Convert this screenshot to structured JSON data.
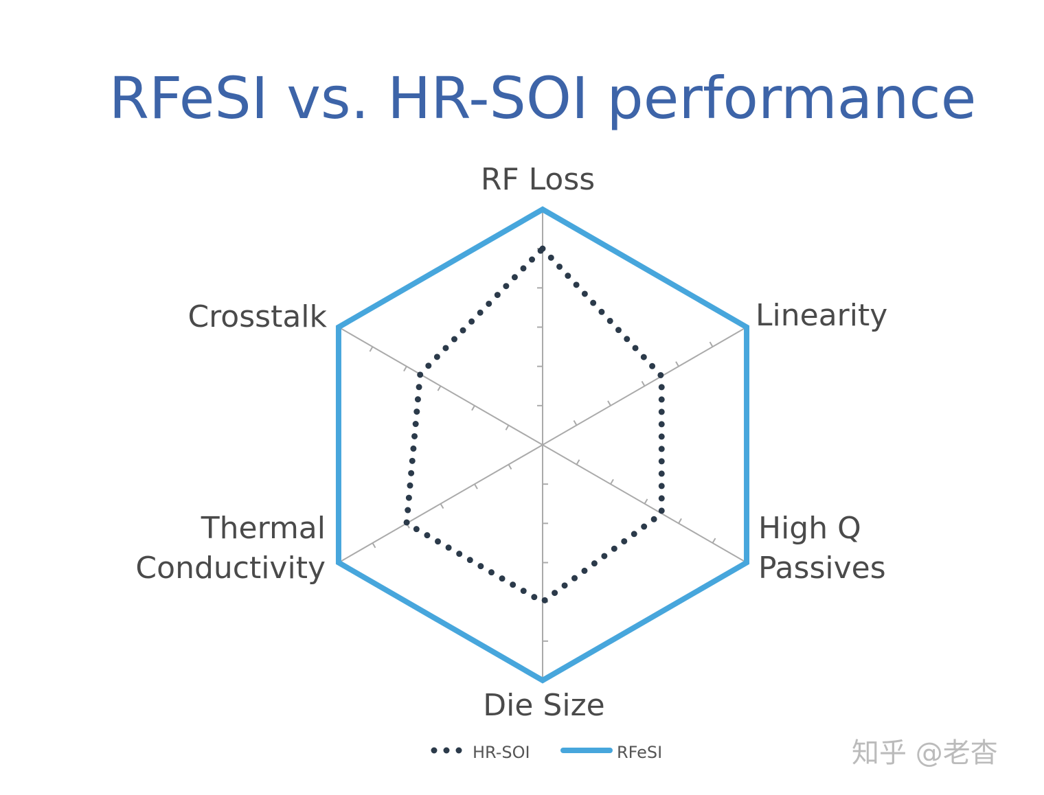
{
  "chart_data": {
    "type": "radar",
    "title": "RFeSI vs. HR-SOI performance",
    "axes": [
      "RF Loss",
      "Linearity",
      "High Q Passives",
      "Die Size",
      "Thermal Conductivity",
      "Crosstalk"
    ],
    "axis_label_lines": [
      [
        "RF Loss"
      ],
      [
        "Linearity"
      ],
      [
        "High Q",
        "Passives"
      ],
      [
        "Die Size"
      ],
      [
        "Thermal",
        "Conductivity"
      ],
      [
        "Crosstalk"
      ]
    ],
    "range": [
      0,
      6
    ],
    "series": [
      {
        "name": "HR-SOI",
        "values": [
          5,
          3.5,
          3.5,
          4,
          4,
          3.6
        ],
        "color": "#2b3a4a",
        "style": "dotted"
      },
      {
        "name": "RFeSI",
        "values": [
          6,
          6,
          6,
          6,
          6,
          6
        ],
        "color": "#47a6dc",
        "style": "solid"
      }
    ],
    "legend_position": "bottom",
    "grid": "spokes-with-ticks"
  },
  "watermark": "知乎 @老杳"
}
